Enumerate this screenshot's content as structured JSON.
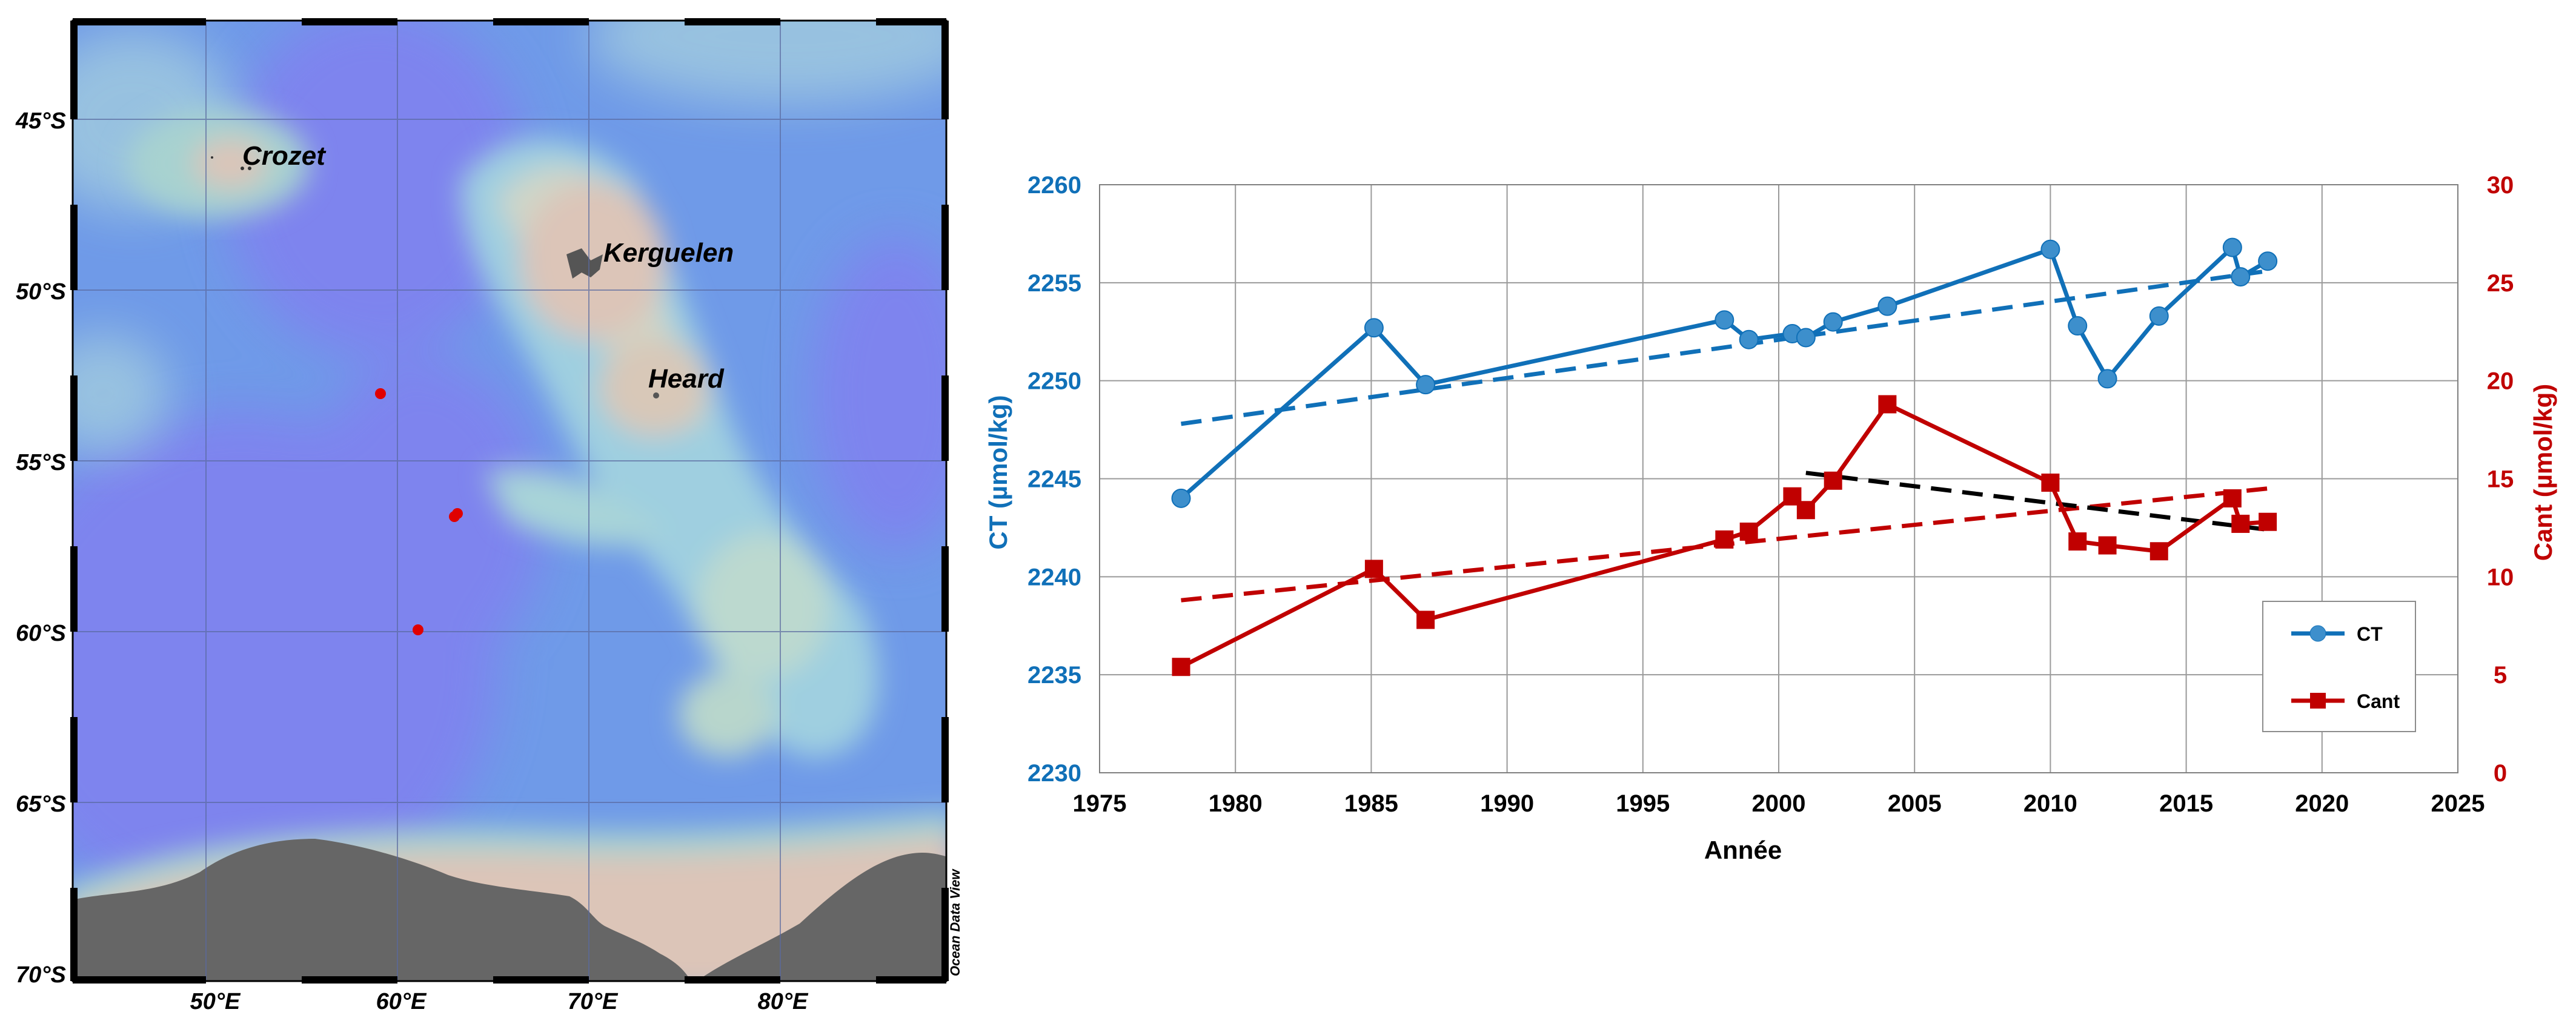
{
  "colors": {
    "ct": "#1070b8",
    "cant": "#c00000",
    "trend_black": "#000000",
    "ocean_deep": "#7d85ee",
    "ocean_mid": "#6f9ae8",
    "ocean_shallow": "#8fc4e0",
    "shelf": "#a7d2d0",
    "land_ice": "#dcc5b8",
    "land_rock": "#666666"
  },
  "map": {
    "lat_labels": [
      "45°S",
      "50°S",
      "55°S",
      "60°S",
      "65°S",
      "70°S"
    ],
    "lon_labels": [
      "50°E",
      "60°E",
      "70°E",
      "80°E"
    ],
    "places": [
      "Crozet",
      "Kerguelen",
      "Heard"
    ],
    "credit": "Ocean Data View"
  },
  "chart_data": {
    "type": "line",
    "xlabel": "Année",
    "ylabel_left": "CT (µmol/kg)",
    "ylabel_right": "Cant (µmol/kg)",
    "xlim": [
      1975,
      2025
    ],
    "ylim_left": [
      2230,
      2260
    ],
    "ylim_right": [
      0,
      30
    ],
    "x_ticks": [
      "1975",
      "1980",
      "1985",
      "1990",
      "1995",
      "2000",
      "2005",
      "2010",
      "2015",
      "2020",
      "2025"
    ],
    "y_left_ticks": [
      "2230",
      "2235",
      "2240",
      "2245",
      "2250",
      "2255",
      "2260"
    ],
    "y_right_ticks": [
      "0",
      "5",
      "10",
      "15",
      "20",
      "25",
      "30"
    ],
    "grid": true,
    "legend_position": "bottom-right",
    "series": [
      {
        "name": "CT",
        "axis": "left",
        "marker": "circle",
        "x": [
          1978.0,
          1985.1,
          1987.0,
          1998.0,
          1998.9,
          2000.5,
          2001.0,
          2002.0,
          2004.0,
          2010.0,
          2011.0,
          2012.1,
          2014.0,
          2016.7,
          2017.0,
          2018.0
        ],
        "y": [
          2244.0,
          2252.7,
          2249.8,
          2253.1,
          2252.1,
          2252.4,
          2252.2,
          2253.0,
          2253.8,
          2256.7,
          2252.8,
          2250.1,
          2253.3,
          2256.8,
          2255.3,
          2256.1
        ]
      },
      {
        "name": "Cant",
        "axis": "right",
        "marker": "square",
        "x": [
          1978.0,
          1985.1,
          1987.0,
          1998.0,
          1998.9,
          2000.5,
          2001.0,
          2002.0,
          2004.0,
          2010.0,
          2011.0,
          2012.1,
          2014.0,
          2016.7,
          2017.0,
          2018.0
        ],
        "y": [
          5.4,
          10.4,
          7.8,
          11.9,
          12.3,
          14.1,
          13.4,
          14.9,
          18.8,
          14.8,
          11.8,
          11.6,
          11.3,
          14.0,
          12.7,
          12.8
        ]
      }
    ],
    "trendlines": [
      {
        "of": "CT",
        "axis": "left",
        "x": [
          1978,
          2018
        ],
        "y": [
          2247.8,
          2255.6
        ]
      },
      {
        "of": "Cant",
        "axis": "right",
        "x": [
          1978,
          2018
        ],
        "y": [
          8.8,
          14.5
        ]
      },
      {
        "of": "Cant",
        "axis": "right",
        "x": [
          2001,
          2018
        ],
        "y": [
          15.3,
          12.4
        ]
      }
    ]
  }
}
